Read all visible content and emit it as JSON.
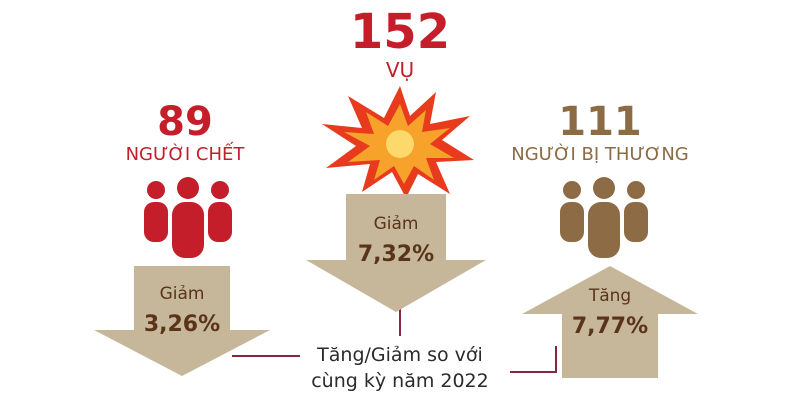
{
  "colors": {
    "red": "#c41e2a",
    "brown": "#8c6b45",
    "arrow": "#c6b79b",
    "text_dark": "#5a3418",
    "line": "#8a2440",
    "star_outer": "#e83a1c",
    "star_inner": "#f7a22a"
  },
  "center": {
    "count": "152",
    "unit": "VỤ",
    "icon": "explosion-icon",
    "arrow_label": "Giảm",
    "arrow_value": "7,32%"
  },
  "left": {
    "count": "89",
    "unit": "NGƯỜI CHẾT",
    "icon": "people-group-icon",
    "arrow_label": "Giảm",
    "arrow_value": "3,26%"
  },
  "right": {
    "count": "111",
    "unit": "NGƯỜI BỊ THƯƠNG",
    "icon": "people-group-icon",
    "arrow_label": "Tăng",
    "arrow_value": "7,77%"
  },
  "note": {
    "line1": "Tăng/Giảm so với",
    "line2": "cùng kỳ năm 2022"
  }
}
